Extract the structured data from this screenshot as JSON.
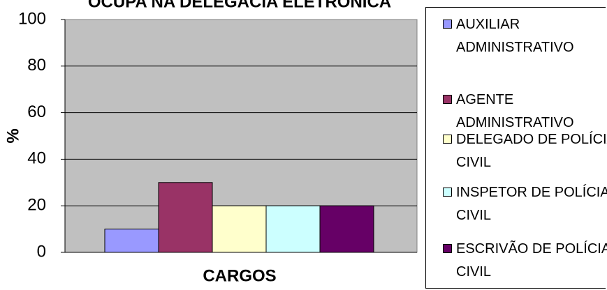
{
  "chart_data": {
    "type": "bar",
    "title": "OCUPA NA DELEGACIA ELETRÔNICA",
    "xlabel": "CARGOS",
    "ylabel": "%",
    "series": [
      {
        "name": "AUXILIAR ADMINISTRATIVO",
        "color": "#9999ff",
        "values": [
          10
        ]
      },
      {
        "name": "AGENTE ADMINISTRATIVO",
        "color": "#993366",
        "values": [
          30
        ]
      },
      {
        "name": "DELEGADO DE POLÍCIA CIVIL",
        "color": "#ffffcc",
        "values": [
          20
        ]
      },
      {
        "name": "INSPETOR DE POLÍCIA CIVIL",
        "color": "#ccffff",
        "values": [
          20
        ]
      },
      {
        "name": "ESCRIVÃO DE POLÍCIA CIVIL",
        "color": "#660066",
        "values": [
          20
        ]
      }
    ],
    "ylim": [
      0,
      100
    ],
    "yticks": [
      0,
      20,
      40,
      60,
      80,
      100
    ],
    "grid": true,
    "legend": "right"
  }
}
